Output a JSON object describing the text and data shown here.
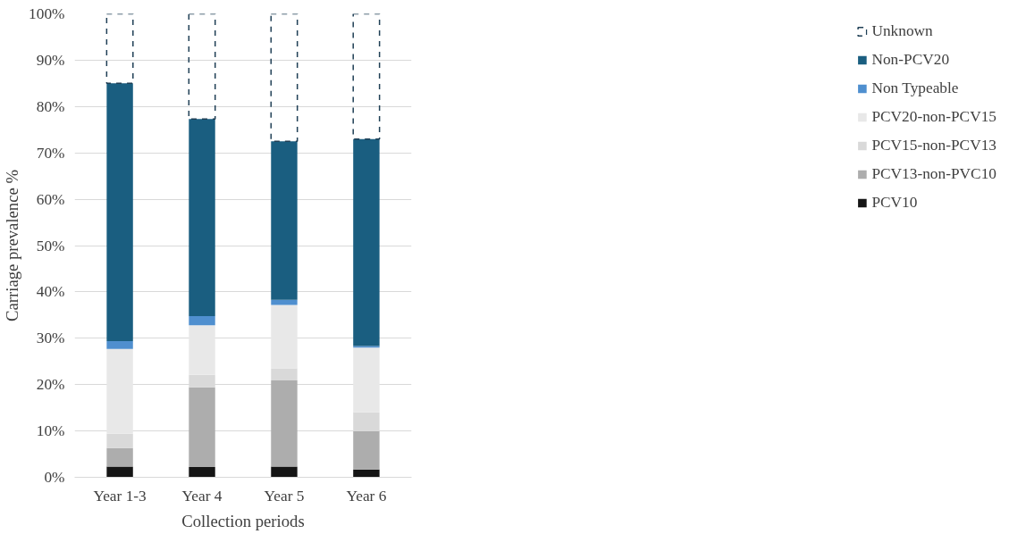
{
  "chart_data": {
    "type": "bar",
    "stacked": true,
    "xlabel": "Collection periods",
    "ylabel": "Carriage prevalence %",
    "categories": [
      "Year 1-3",
      "Year 4",
      "Year 5",
      "Year 6"
    ],
    "series": [
      {
        "name": "PCV10",
        "color": "#151515",
        "values": [
          2.3,
          2.2,
          2.3,
          1.7
        ]
      },
      {
        "name": "PCV13-non-PVC10",
        "color": "#adadad",
        "values": [
          4.0,
          17.2,
          18.6,
          8.2
        ]
      },
      {
        "name": "PCV15-non-PCV13",
        "color": "#d9d9d9",
        "values": [
          3.1,
          2.7,
          2.6,
          4.1
        ]
      },
      {
        "name": "PCV20-non-PCV15",
        "color": "#e8e8e8",
        "values": [
          18.3,
          10.7,
          13.7,
          14.0
        ]
      },
      {
        "name": "Non Typeable",
        "color": "#4f8fcf",
        "values": [
          1.7,
          2.0,
          1.1,
          0.3
        ]
      },
      {
        "name": "Non-PCV20",
        "color": "#1a5e80",
        "values": [
          55.6,
          42.5,
          34.2,
          44.7
        ]
      },
      {
        "name": "Unknown",
        "color": "#1f3f55",
        "line_style": "dashed",
        "values": [
          15.0,
          22.7,
          27.5,
          27.0
        ]
      }
    ],
    "ylim": [
      0,
      100
    ],
    "yticks": [
      {
        "value": 0,
        "label": "0%"
      },
      {
        "value": 10,
        "label": "10%"
      },
      {
        "value": 20,
        "label": "20%"
      },
      {
        "value": 30,
        "label": "30%"
      },
      {
        "value": 40,
        "label": "40%"
      },
      {
        "value": 50,
        "label": "50%"
      },
      {
        "value": 60,
        "label": "60%"
      },
      {
        "value": 70,
        "label": "70%"
      },
      {
        "value": 80,
        "label": "80%"
      },
      {
        "value": 90,
        "label": "90%"
      },
      {
        "value": 100,
        "label": "100%"
      }
    ],
    "grid": "y",
    "legend": "right"
  }
}
